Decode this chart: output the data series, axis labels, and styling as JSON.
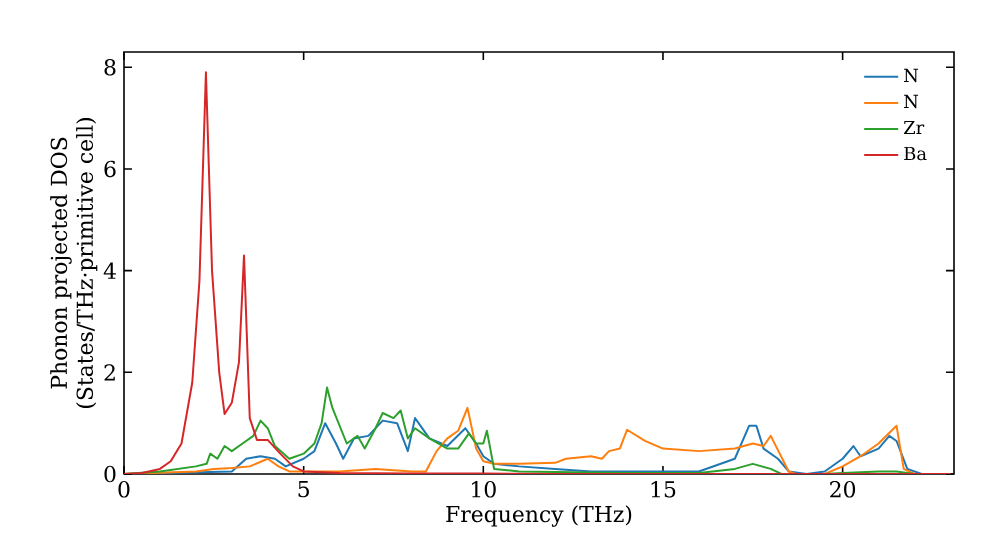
{
  "chart_data": {
    "type": "line",
    "xlabel": "Frequency (THz)",
    "ylabel": "Phonon projected DOS\n(States/THz·primitive cell)",
    "xlim": [
      0,
      23.1
    ],
    "ylim": [
      0,
      8.3
    ],
    "xticks": [
      0,
      5,
      10,
      15,
      20
    ],
    "yticks": [
      0,
      2,
      4,
      6,
      8
    ],
    "legend": "top right",
    "grid": false,
    "marker": "none",
    "line_style": "solid",
    "series": [
      {
        "name": "N",
        "color": "#1f77b4",
        "x": [
          0,
          3,
          3.4,
          3.8,
          4.2,
          4.5,
          5,
          5.3,
          5.6,
          5.9,
          6.1,
          6.4,
          6.8,
          7.2,
          7.6,
          7.9,
          8.1,
          8.5,
          9,
          9.5,
          9.8,
          10,
          10.3,
          11,
          12,
          13,
          16,
          17,
          17.4,
          17.6,
          17.8,
          18.2,
          18.5,
          19,
          19.5,
          20,
          20.3,
          20.5,
          21,
          21.3,
          21.5,
          21.8,
          22.2,
          23
        ],
        "values": [
          0,
          0.05,
          0.3,
          0.35,
          0.3,
          0.15,
          0.3,
          0.45,
          1.0,
          0.6,
          0.3,
          0.7,
          0.75,
          1.05,
          1.0,
          0.45,
          1.1,
          0.7,
          0.55,
          0.9,
          0.6,
          0.35,
          0.2,
          0.15,
          0.1,
          0.05,
          0.05,
          0.3,
          0.95,
          0.95,
          0.5,
          0.3,
          0.05,
          0,
          0.05,
          0.3,
          0.55,
          0.35,
          0.5,
          0.75,
          0.65,
          0.1,
          0,
          0
        ]
      },
      {
        "name": "N",
        "color": "#ff7f0e",
        "x": [
          0,
          2,
          2.5,
          3,
          3.5,
          4,
          4.3,
          4.6,
          6,
          7,
          8,
          8.4,
          8.7,
          9.0,
          9.3,
          9.56,
          9.8,
          10,
          10.3,
          11,
          12,
          12.3,
          13,
          13.3,
          13.5,
          13.8,
          14.0,
          14.5,
          15,
          16,
          17,
          17.5,
          17.8,
          18,
          18.5,
          18.7,
          19.5,
          20,
          20.5,
          21,
          21.5,
          21.7,
          22,
          23
        ],
        "values": [
          0,
          0.05,
          0.1,
          0.12,
          0.15,
          0.3,
          0.15,
          0.05,
          0.05,
          0.1,
          0.05,
          0.05,
          0.45,
          0.7,
          0.85,
          1.3,
          0.5,
          0.25,
          0.2,
          0.2,
          0.22,
          0.3,
          0.35,
          0.3,
          0.45,
          0.5,
          0.87,
          0.65,
          0.5,
          0.45,
          0.5,
          0.6,
          0.55,
          0.75,
          0.05,
          0,
          0,
          0.15,
          0.35,
          0.6,
          0.95,
          0.1,
          0,
          0
        ]
      },
      {
        "name": "Zr",
        "color": "#2ca02c",
        "x": [
          0,
          1,
          2,
          2.3,
          2.4,
          2.6,
          2.8,
          3,
          3.3,
          3.6,
          3.8,
          4,
          4.2,
          4.6,
          5,
          5.3,
          5.5,
          5.65,
          5.8,
          6,
          6.2,
          6.5,
          6.7,
          7,
          7.2,
          7.5,
          7.7,
          7.9,
          8.1,
          8.5,
          9,
          9.3,
          9.6,
          9.8,
          10,
          10.1,
          10.3,
          11,
          13,
          14,
          16,
          17,
          17.5,
          18,
          18.3,
          19.5,
          20,
          21,
          21.5,
          22,
          23
        ],
        "values": [
          0,
          0.05,
          0.15,
          0.2,
          0.4,
          0.3,
          0.55,
          0.45,
          0.6,
          0.75,
          1.05,
          0.9,
          0.55,
          0.3,
          0.4,
          0.6,
          1.0,
          1.7,
          1.3,
          0.95,
          0.6,
          0.75,
          0.5,
          0.9,
          1.2,
          1.1,
          1.25,
          0.7,
          0.9,
          0.7,
          0.5,
          0.5,
          0.8,
          0.6,
          0.6,
          0.85,
          0.1,
          0.05,
          0.03,
          0.02,
          0.02,
          0.1,
          0.2,
          0.1,
          0,
          0,
          0.02,
          0.05,
          0.05,
          0,
          0
        ]
      },
      {
        "name": "Ba",
        "color": "#d62728",
        "x": [
          0,
          0.5,
          1,
          1.3,
          1.6,
          1.9,
          2.1,
          2.28,
          2.45,
          2.65,
          2.8,
          3.0,
          3.2,
          3.34,
          3.5,
          3.7,
          4.0,
          4.35,
          4.7,
          5,
          6,
          8,
          10,
          12,
          23
        ],
        "values": [
          0,
          0.02,
          0.1,
          0.25,
          0.6,
          1.8,
          3.8,
          7.9,
          4.0,
          2.0,
          1.18,
          1.4,
          2.2,
          4.3,
          1.1,
          0.67,
          0.67,
          0.4,
          0.15,
          0.05,
          0.02,
          0.01,
          0.01,
          0,
          0
        ]
      }
    ]
  }
}
